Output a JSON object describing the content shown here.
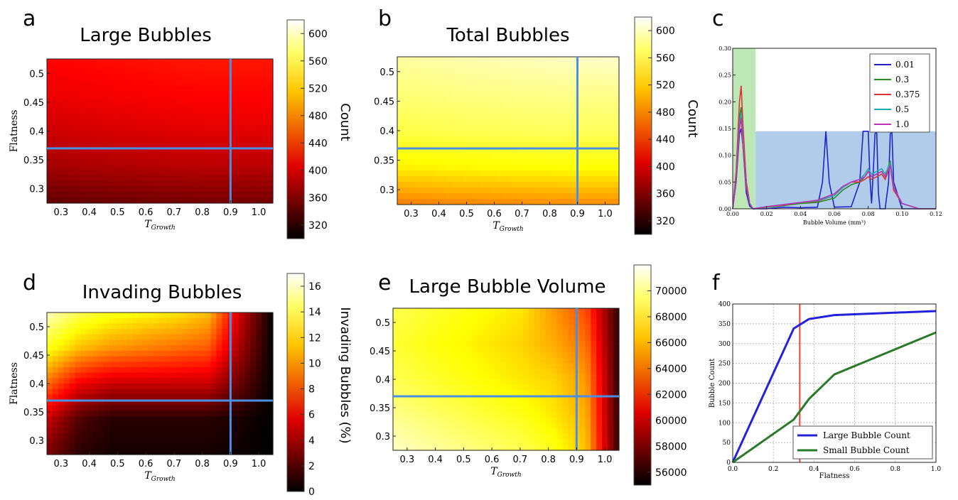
{
  "panel_letters": {
    "a": "a",
    "b": "b",
    "c": "c",
    "d": "d",
    "e": "e",
    "f": "f"
  },
  "colors": {
    "crosshair": "#4a90e2",
    "green_region": "#b9e6b0",
    "blue_region": "#adc9ea",
    "flatness_marker": "#e8443a"
  },
  "chart_data": [
    {
      "id": "a",
      "type": "heatmap",
      "title": "Large Bubbles",
      "xlabel": "T_Growth",
      "ylabel": "Flatness",
      "colorbar_label": "Count",
      "xlim": [
        0.25,
        1.05
      ],
      "ylim": [
        0.275,
        0.525
      ],
      "xticks": [
        "0.3",
        "0.4",
        "0.5",
        "0.6",
        "0.7",
        "0.8",
        "0.9",
        "1.0"
      ],
      "yticks": [
        "0.3",
        "0.35",
        "0.4",
        "0.45",
        "0.5"
      ],
      "colorbar_range": [
        300,
        620
      ],
      "colorbar_ticks": [
        "320",
        "360",
        "400",
        "440",
        "480",
        "520",
        "560",
        "600"
      ],
      "crosshair": {
        "x": 0.9,
        "y": 0.37
      },
      "grid_values": [
        [
          345,
          348,
          350,
          352,
          354,
          355,
          355,
          355
        ],
        [
          375,
          378,
          380,
          382,
          384,
          385,
          385,
          385
        ],
        [
          395,
          398,
          400,
          402,
          404,
          405,
          405,
          405
        ],
        [
          410,
          412,
          414,
          416,
          418,
          419,
          419,
          419
        ],
        [
          420,
          422,
          424,
          426,
          428,
          429,
          429,
          429
        ]
      ]
    },
    {
      "id": "b",
      "type": "heatmap",
      "title": "Total Bubbles",
      "xlabel": "T_Growth",
      "ylabel": "",
      "colorbar_label": "Count",
      "xlim": [
        0.25,
        1.05
      ],
      "ylim": [
        0.275,
        0.525
      ],
      "xticks": [
        "0.3",
        "0.4",
        "0.5",
        "0.6",
        "0.7",
        "0.8",
        "0.9",
        "1.0"
      ],
      "yticks": [
        "0.3",
        "0.35",
        "0.4",
        "0.45",
        "0.5"
      ],
      "colorbar_range": [
        300,
        620
      ],
      "colorbar_ticks": [
        "320",
        "360",
        "400",
        "440",
        "480",
        "520",
        "560",
        "600"
      ],
      "crosshair": {
        "x": 0.9,
        "y": 0.37
      },
      "grid_values": [
        [
          475,
          478,
          480,
          481,
          482,
          483,
          483,
          483
        ],
        [
          530,
          532,
          534,
          535,
          536,
          537,
          537,
          537
        ],
        [
          560,
          562,
          564,
          565,
          566,
          567,
          567,
          567
        ],
        [
          575,
          577,
          579,
          580,
          581,
          582,
          582,
          582
        ],
        [
          590,
          592,
          594,
          596,
          598,
          600,
          602,
          604
        ]
      ]
    },
    {
      "id": "c",
      "type": "line",
      "xlabel": "Bubble Volume (mm³)",
      "ylabel": "",
      "xlim": [
        0.0,
        0.12
      ],
      "ylim": [
        0.0,
        0.3
      ],
      "xticks": [
        "0.00",
        "0.02",
        "0.04",
        "0.06",
        "0.08",
        "0.10",
        "0.12"
      ],
      "yticks": [
        "0.00",
        "0.05",
        "0.10",
        "0.15",
        "0.20",
        "0.25",
        "0.30"
      ],
      "regions": [
        {
          "x": [
            0.0,
            0.0135
          ],
          "y": [
            0.0,
            0.3
          ],
          "color": "green"
        },
        {
          "x": [
            0.0135,
            0.12
          ],
          "y": [
            0.0,
            0.145
          ],
          "color": "blue"
        }
      ],
      "legend_position": "top-right",
      "series": [
        {
          "name": "0.01",
          "color": "#2222cc",
          "x": [
            0,
            0.002,
            0.004,
            0.005,
            0.006,
            0.008,
            0.01,
            0.012,
            0.02,
            0.03,
            0.04,
            0.05,
            0.053,
            0.055,
            0.057,
            0.06,
            0.07,
            0.075,
            0.077,
            0.078,
            0.079,
            0.08,
            0.081,
            0.082,
            0.083,
            0.084,
            0.085,
            0.086,
            0.087,
            0.09,
            0.092,
            0.093,
            0.094,
            0.095,
            0.1,
            0.11,
            0.12
          ],
          "y": [
            0,
            0.05,
            0.14,
            0.15,
            0.12,
            0.03,
            0.005,
            0,
            0,
            0.003,
            0.002,
            0.003,
            0.05,
            0.145,
            0.05,
            0.003,
            0.004,
            0.05,
            0.145,
            0.145,
            0.145,
            0.145,
            0.06,
            0.01,
            0.07,
            0.14,
            0.145,
            0.03,
            0,
            0,
            0.05,
            0.14,
            0.145,
            0.05,
            0,
            0,
            0
          ]
        },
        {
          "name": "0.3",
          "color": "#2a8a2a",
          "x": [
            0,
            0.002,
            0.004,
            0.005,
            0.006,
            0.008,
            0.01,
            0.012,
            0.02,
            0.03,
            0.04,
            0.05,
            0.06,
            0.065,
            0.07,
            0.075,
            0.078,
            0.08,
            0.082,
            0.085,
            0.088,
            0.09,
            0.093,
            0.095,
            0.1,
            0.11,
            0.12
          ],
          "y": [
            0,
            0.06,
            0.17,
            0.19,
            0.14,
            0.05,
            0.01,
            0,
            0.003,
            0.006,
            0.01,
            0.012,
            0.02,
            0.035,
            0.045,
            0.05,
            0.06,
            0.07,
            0.06,
            0.065,
            0.07,
            0.06,
            0.09,
            0.04,
            0.01,
            0,
            0
          ]
        },
        {
          "name": "0.375",
          "color": "#dd3333",
          "x": [
            0,
            0.002,
            0.004,
            0.005,
            0.006,
            0.008,
            0.01,
            0.012,
            0.02,
            0.03,
            0.04,
            0.05,
            0.06,
            0.065,
            0.07,
            0.075,
            0.078,
            0.08,
            0.082,
            0.085,
            0.088,
            0.09,
            0.093,
            0.095,
            0.1,
            0.11,
            0.12
          ],
          "y": [
            0,
            0.07,
            0.2,
            0.23,
            0.16,
            0.05,
            0.01,
            0,
            0.004,
            0.007,
            0.012,
            0.014,
            0.025,
            0.04,
            0.05,
            0.05,
            0.055,
            0.06,
            0.055,
            0.06,
            0.065,
            0.055,
            0.08,
            0.035,
            0.01,
            0,
            0
          ]
        },
        {
          "name": "0.5",
          "color": "#22aaaa",
          "x": [
            0,
            0.002,
            0.004,
            0.005,
            0.006,
            0.008,
            0.01,
            0.012,
            0.02,
            0.03,
            0.04,
            0.05,
            0.06,
            0.065,
            0.07,
            0.075,
            0.078,
            0.08,
            0.082,
            0.085,
            0.088,
            0.09,
            0.093,
            0.095,
            0.1,
            0.11,
            0.12
          ],
          "y": [
            0,
            0.06,
            0.16,
            0.18,
            0.13,
            0.04,
            0.01,
            0,
            0.004,
            0.008,
            0.012,
            0.015,
            0.025,
            0.04,
            0.05,
            0.055,
            0.065,
            0.075,
            0.065,
            0.07,
            0.075,
            0.065,
            0.085,
            0.04,
            0.01,
            0,
            0
          ]
        },
        {
          "name": "1.0",
          "color": "#bb33bb",
          "x": [
            0,
            0.002,
            0.004,
            0.005,
            0.006,
            0.008,
            0.01,
            0.012,
            0.02,
            0.03,
            0.04,
            0.05,
            0.06,
            0.065,
            0.07,
            0.075,
            0.078,
            0.08,
            0.082,
            0.085,
            0.088,
            0.09,
            0.093,
            0.095,
            0.1,
            0.11,
            0.12
          ],
          "y": [
            0,
            0.055,
            0.15,
            0.17,
            0.12,
            0.04,
            0.01,
            0,
            0.004,
            0.008,
            0.012,
            0.016,
            0.028,
            0.042,
            0.05,
            0.055,
            0.06,
            0.07,
            0.06,
            0.065,
            0.07,
            0.06,
            0.08,
            0.04,
            0.01,
            0,
            0
          ]
        }
      ]
    },
    {
      "id": "d",
      "type": "heatmap",
      "title": "Invading Bubbles",
      "xlabel": "T_Growth",
      "ylabel": "Flatness",
      "colorbar_label": "Invading Bubbles (%)",
      "xlim": [
        0.25,
        1.05
      ],
      "ylim": [
        0.275,
        0.525
      ],
      "xticks": [
        "0.3",
        "0.4",
        "0.5",
        "0.6",
        "0.7",
        "0.8",
        "0.9",
        "1.0"
      ],
      "yticks": [
        "0.3",
        "0.35",
        "0.4",
        "0.45",
        "0.5"
      ],
      "colorbar_range": [
        0,
        17
      ],
      "colorbar_ticks": [
        "0",
        "2",
        "4",
        "6",
        "8",
        "10",
        "12",
        "14",
        "16"
      ],
      "crosshair": {
        "x": 0.9,
        "y": 0.37
      },
      "grid_values": [
        [
          3,
          1,
          0.5,
          0.5,
          0.5,
          0.5,
          0.3,
          0
        ],
        [
          5,
          2,
          1,
          1,
          1,
          1,
          0.6,
          0
        ],
        [
          9,
          6,
          5,
          5,
          5,
          5,
          2.5,
          0
        ],
        [
          13,
          11,
          10,
          9.5,
          9,
          8.5,
          4,
          0
        ],
        [
          16,
          14,
          13,
          12.5,
          12,
          11,
          5,
          0
        ]
      ]
    },
    {
      "id": "e",
      "type": "heatmap",
      "title": "Large Bubble Volume",
      "xlabel": "T_Growth",
      "ylabel": "",
      "colorbar_label": "",
      "xlim": [
        0.25,
        1.05
      ],
      "ylim": [
        0.275,
        0.525
      ],
      "xticks": [
        "0.3",
        "0.4",
        "0.5",
        "0.6",
        "0.7",
        "0.8",
        "0.9",
        "1.0"
      ],
      "yticks": [
        "0.3",
        "0.35",
        "0.4",
        "0.45",
        "0.5"
      ],
      "colorbar_range": [
        55000,
        72000
      ],
      "colorbar_ticks": [
        "56000",
        "58000",
        "60000",
        "62000",
        "64000",
        "66000",
        "68000",
        "70000"
      ],
      "crosshair": {
        "x": 0.9,
        "y": 0.37
      },
      "grid_values": [
        [
          71000,
          70500,
          70000,
          69500,
          69000,
          68000,
          66000,
          56000
        ],
        [
          70000,
          69500,
          69000,
          68500,
          68000,
          67000,
          65500,
          56000
        ],
        [
          69000,
          68500,
          68000,
          67500,
          67000,
          66500,
          65000,
          56000
        ],
        [
          68500,
          68000,
          67500,
          67000,
          66500,
          65500,
          64000,
          56000
        ],
        [
          69000,
          68500,
          68000,
          67500,
          67000,
          65000,
          63000,
          56000
        ]
      ]
    },
    {
      "id": "f",
      "type": "line",
      "xlabel": "Flatness",
      "ylabel": "Bubble Count",
      "xlim": [
        0.0,
        1.0
      ],
      "ylim": [
        0,
        400
      ],
      "xticks": [
        "0.0",
        "0.2",
        "0.4",
        "0.6",
        "0.8",
        "1.0"
      ],
      "yticks": [
        "0",
        "50",
        "100",
        "150",
        "200",
        "250",
        "300",
        "350",
        "400"
      ],
      "grid": true,
      "vline": 0.33,
      "legend_position": "bottom-right",
      "series": [
        {
          "name": "Large Bubble Count",
          "color": "#2222dd",
          "x": [
            0.0,
            0.3,
            0.375,
            0.5,
            1.0
          ],
          "y": [
            0,
            338,
            362,
            372,
            382
          ]
        },
        {
          "name": "Small Bubble Count",
          "color": "#2a7a2a",
          "x": [
            0.0,
            0.3,
            0.375,
            0.5,
            1.0
          ],
          "y": [
            0,
            108,
            160,
            222,
            328
          ]
        }
      ]
    }
  ]
}
